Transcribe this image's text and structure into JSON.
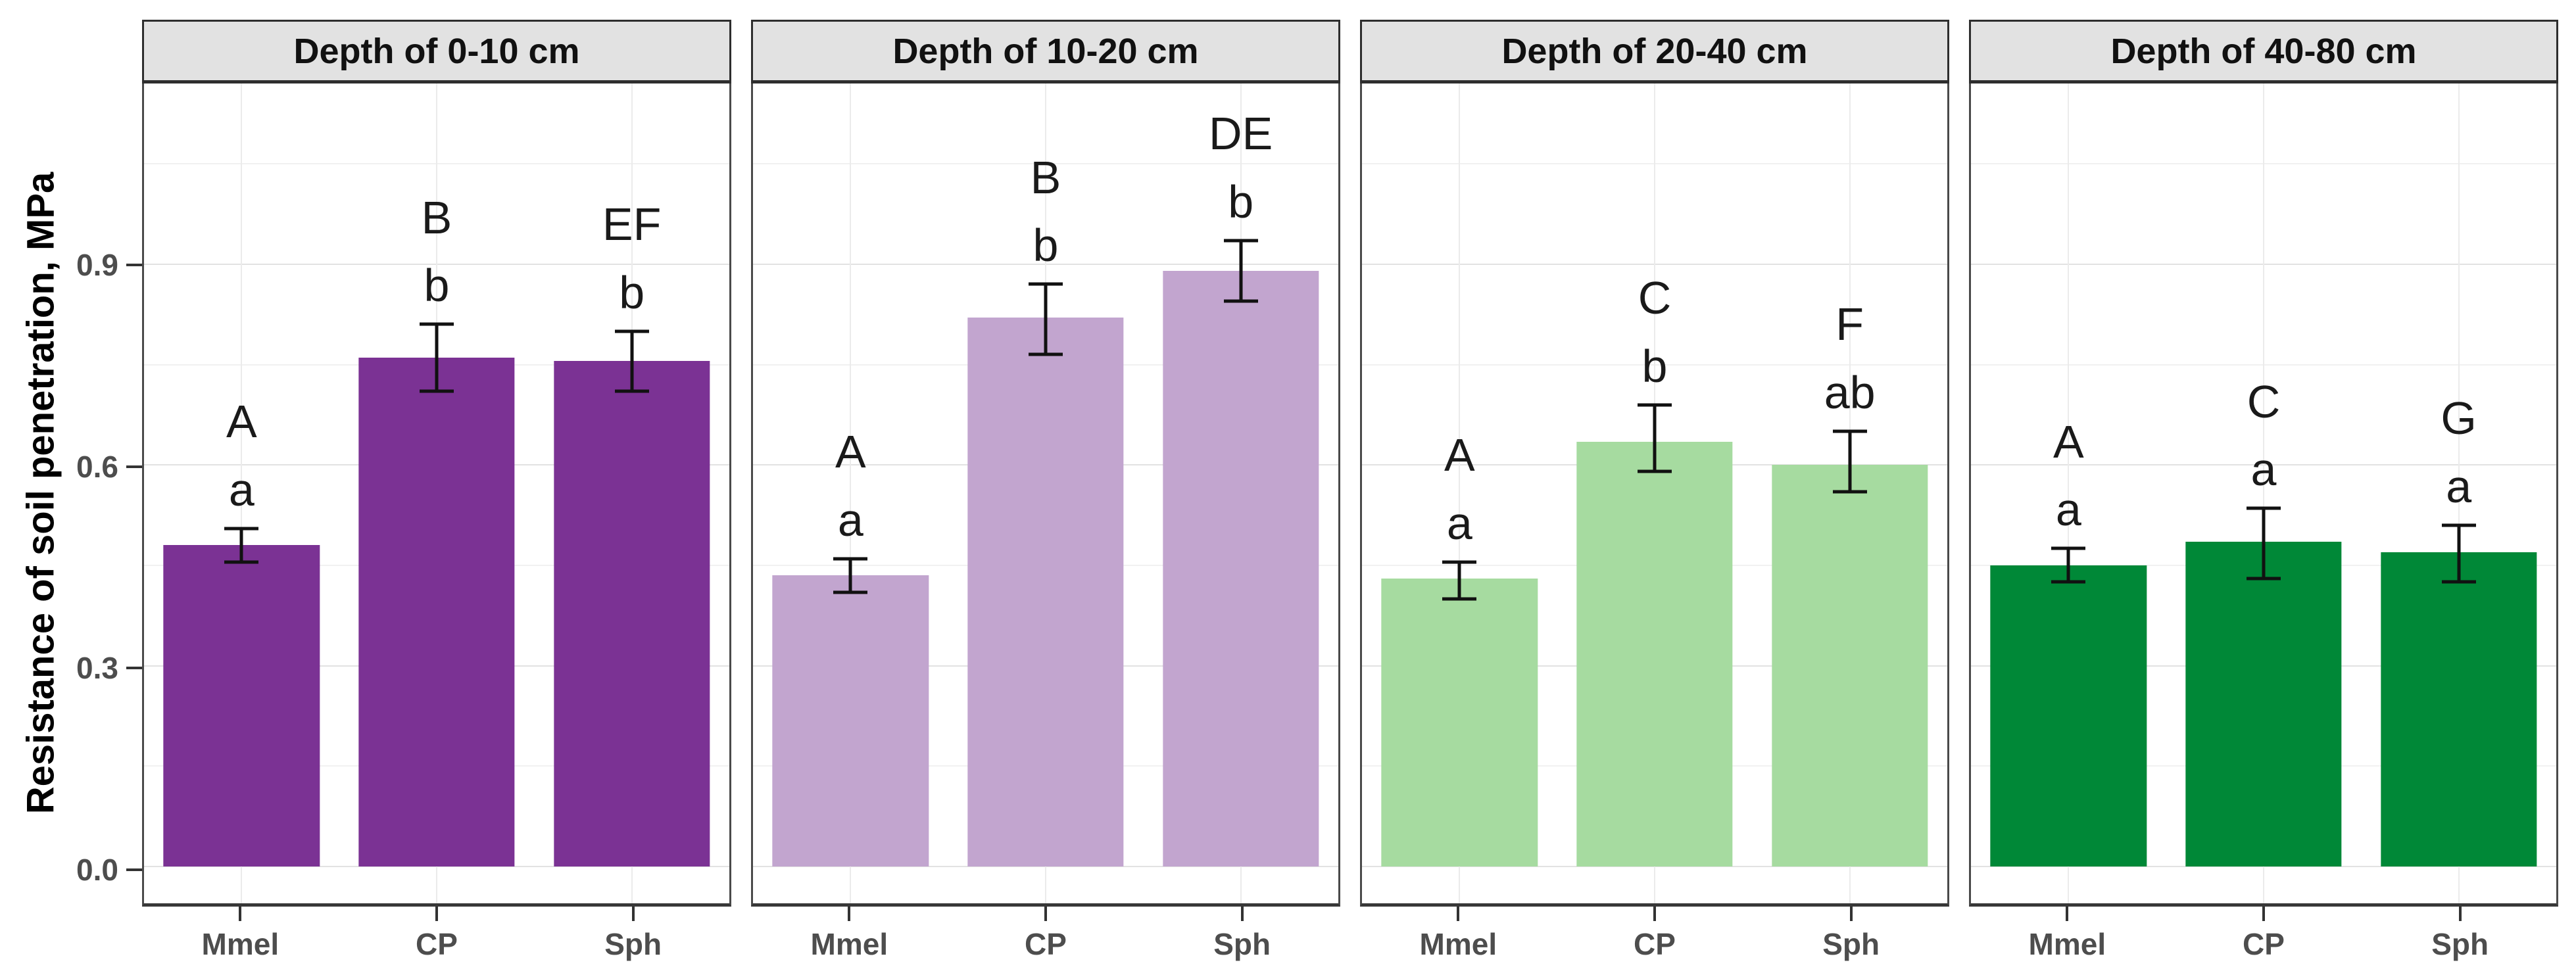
{
  "figure": {
    "y_axis_title": "Resistance of soil penetration, MPa",
    "y_ticks": [
      {
        "value": 0.0,
        "label": "0.0"
      },
      {
        "value": 0.3,
        "label": "0.3"
      },
      {
        "value": 0.6,
        "label": "0.6"
      },
      {
        "value": 0.9,
        "label": "0.9"
      }
    ]
  },
  "chart_data": {
    "type": "bar",
    "title": "",
    "xlabel": "",
    "ylabel": "Resistance of soil penetration, MPa",
    "ylim": [
      0,
      1.17
    ],
    "grid": true,
    "legend_position": "none",
    "categories": [
      "Mmel",
      "CP",
      "Sph"
    ],
    "y_major_gridlines": [
      0.0,
      0.3,
      0.6,
      0.9
    ],
    "y_minor_gridlines": [
      0.15,
      0.45,
      0.75,
      1.05
    ],
    "facets": [
      {
        "title": "Depth of 0-10 cm",
        "bar_color": "#7B3294",
        "bars": [
          {
            "category": "Mmel",
            "value": 0.48,
            "err_low": 0.455,
            "err_high": 0.505,
            "letter_upper": "A",
            "letter_lower": "a"
          },
          {
            "category": "CP",
            "value": 0.76,
            "err_low": 0.71,
            "err_high": 0.81,
            "letter_upper": "B",
            "letter_lower": "b"
          },
          {
            "category": "Sph",
            "value": 0.755,
            "err_low": 0.71,
            "err_high": 0.8,
            "letter_upper": "EF",
            "letter_lower": "b"
          }
        ]
      },
      {
        "title": "Depth of 10-20 cm",
        "bar_color": "#C2A5CF",
        "bars": [
          {
            "category": "Mmel",
            "value": 0.435,
            "err_low": 0.41,
            "err_high": 0.46,
            "letter_upper": "A",
            "letter_lower": "a"
          },
          {
            "category": "CP",
            "value": 0.82,
            "err_low": 0.765,
            "err_high": 0.87,
            "letter_upper": "B",
            "letter_lower": "b"
          },
          {
            "category": "Sph",
            "value": 0.89,
            "err_low": 0.845,
            "err_high": 0.935,
            "letter_upper": "DE",
            "letter_lower": "b"
          }
        ]
      },
      {
        "title": "Depth of 20-40 cm",
        "bar_color": "#A6DBA0",
        "bars": [
          {
            "category": "Mmel",
            "value": 0.43,
            "err_low": 0.4,
            "err_high": 0.455,
            "letter_upper": "A",
            "letter_lower": "a"
          },
          {
            "category": "CP",
            "value": 0.635,
            "err_low": 0.59,
            "err_high": 0.69,
            "letter_upper": "C",
            "letter_lower": "b"
          },
          {
            "category": "Sph",
            "value": 0.6,
            "err_low": 0.56,
            "err_high": 0.65,
            "letter_upper": "F",
            "letter_lower": "ab"
          }
        ]
      },
      {
        "title": "Depth of 40-80 cm",
        "bar_color": "#008837",
        "bars": [
          {
            "category": "Mmel",
            "value": 0.45,
            "err_low": 0.425,
            "err_high": 0.475,
            "letter_upper": "A",
            "letter_lower": "a"
          },
          {
            "category": "CP",
            "value": 0.485,
            "err_low": 0.43,
            "err_high": 0.535,
            "letter_upper": "C",
            "letter_lower": "a"
          },
          {
            "category": "Sph",
            "value": 0.47,
            "err_low": 0.425,
            "err_high": 0.51,
            "letter_upper": "G",
            "letter_lower": "a"
          }
        ]
      }
    ]
  },
  "style": {
    "strip_background": "#E2E2E2",
    "strip_border": "#2E2E2E",
    "panel_border": "#4A4A4A",
    "grid_major_color": "#E2E2E2",
    "grid_minor_color": "#F1F1F1",
    "error_bar_color": "#111111",
    "axis_text_color": "#4D4D4D",
    "letter_color": "#1A1A1A"
  }
}
